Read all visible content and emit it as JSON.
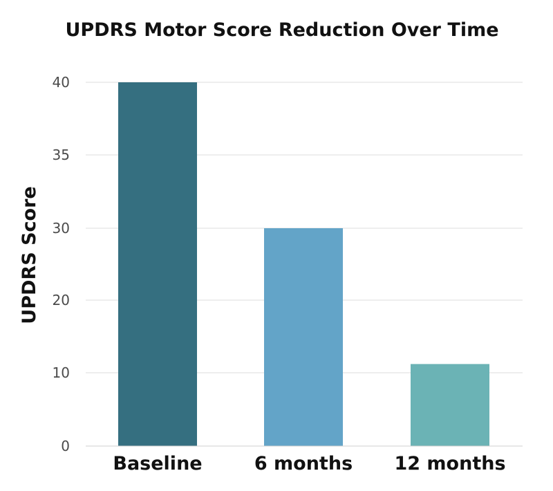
{
  "chart_data": {
    "type": "bar",
    "title": "UPDRS Motor Score Reduction Over Time",
    "xlabel": "",
    "ylabel": "UPDRS  Score",
    "categories": [
      "Baseline",
      "6 months",
      "12 months"
    ],
    "values": [
      40,
      30,
      11.2
    ],
    "y_ticks": [
      "0",
      "10",
      "20",
      "30",
      "35",
      "40"
    ],
    "bar_colors": [
      "#356f80",
      "#63a4c8",
      "#6bb3b5"
    ],
    "grid": true,
    "legend": "none"
  }
}
